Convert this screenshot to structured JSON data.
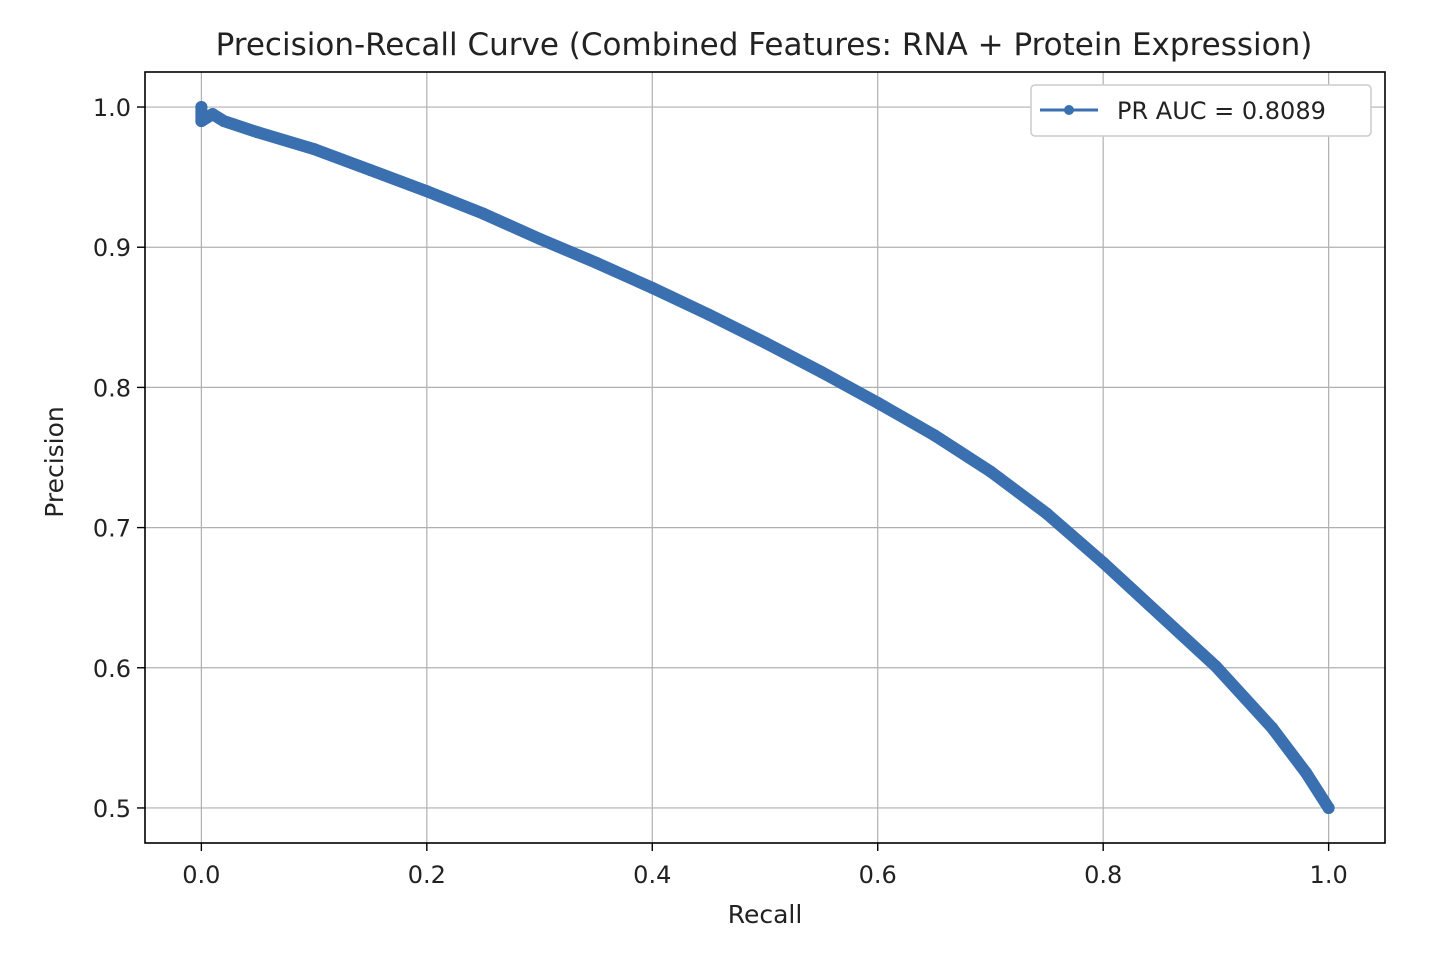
{
  "chart_data": {
    "type": "line",
    "title": "Precision-Recall Curve (Combined Features: RNA + Protein Expression)",
    "xlabel": "Recall",
    "ylabel": "Precision",
    "xlim": [
      -0.05,
      1.05
    ],
    "ylim": [
      0.475,
      1.025
    ],
    "xticks": [
      0.0,
      0.2,
      0.4,
      0.6,
      0.8,
      1.0
    ],
    "xtick_labels": [
      "0.0",
      "0.2",
      "0.4",
      "0.6",
      "0.8",
      "1.0"
    ],
    "yticks": [
      0.5,
      0.6,
      0.7,
      0.8,
      0.9,
      1.0
    ],
    "ytick_labels": [
      "0.5",
      "0.6",
      "0.7",
      "0.8",
      "0.9",
      "1.0"
    ],
    "grid": true,
    "legend_position": "top-right",
    "colors": {
      "series": "#3a6fb0",
      "grid": "#b0b0b0",
      "axes": "#000000"
    },
    "series": [
      {
        "name": "PR AUC = 0.8089",
        "marker": "circle",
        "x": [
          0.0,
          0.0,
          0.01,
          0.02,
          0.05,
          0.1,
          0.15,
          0.2,
          0.25,
          0.3,
          0.35,
          0.4,
          0.45,
          0.5,
          0.55,
          0.6,
          0.65,
          0.7,
          0.75,
          0.8,
          0.85,
          0.9,
          0.95,
          0.98,
          1.0
        ],
        "y": [
          1.0,
          0.99,
          0.995,
          0.99,
          0.982,
          0.97,
          0.955,
          0.94,
          0.924,
          0.906,
          0.889,
          0.871,
          0.852,
          0.832,
          0.811,
          0.789,
          0.766,
          0.74,
          0.71,
          0.675,
          0.638,
          0.601,
          0.557,
          0.525,
          0.5
        ]
      }
    ]
  }
}
